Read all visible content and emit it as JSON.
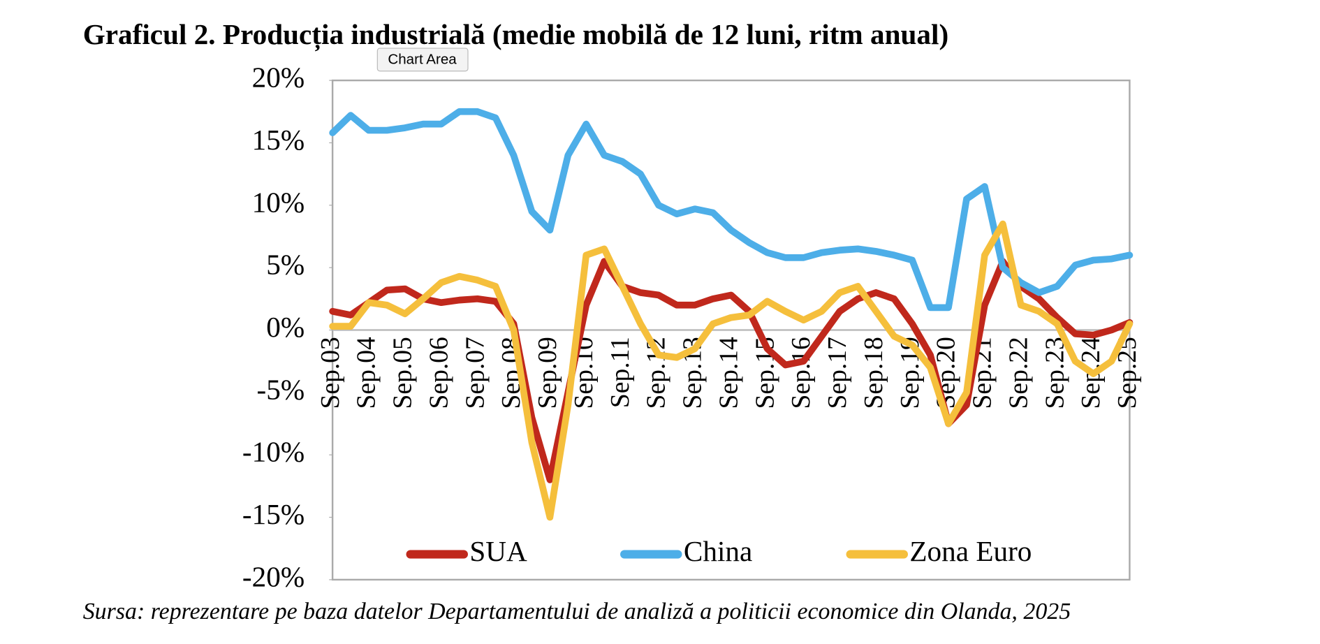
{
  "tooltip": "Chart Area",
  "chart_data": {
    "type": "line",
    "title": "Graficul 2. Producția industrială (medie mobilă de 12 luni, ritm anual)",
    "source": "Sursa: reprezentare pe baza datelor Departamentului de analiză a politicii economice din Olanda, 2025",
    "categories": [
      "Sep.03",
      null,
      "Sep.04",
      null,
      "Sep.05",
      null,
      "Sep.06",
      null,
      "Sep.07",
      null,
      "Sep.08",
      null,
      "Sep.09",
      null,
      "Sep.10",
      null,
      "Sep.11",
      null,
      "Sep.12",
      null,
      "Sep.13",
      null,
      "Sep.14",
      null,
      "Sep.15",
      null,
      "Sep.16",
      null,
      "Sep.17",
      null,
      "Sep.18",
      null,
      "Sep.19",
      null,
      "Sep.20",
      null,
      "Sep.21",
      null,
      "Sep.22",
      null,
      "Sep.23",
      null,
      "Sep.24",
      null,
      "Sep.25"
    ],
    "series": [
      {
        "name": "SUA",
        "color": "#c0281c",
        "values": [
          1.5,
          1.2,
          2.2,
          3.2,
          3.3,
          2.5,
          2.2,
          2.4,
          2.5,
          2.3,
          0.5,
          -7,
          -12,
          -5,
          2,
          5.5,
          3.5,
          3.0,
          2.8,
          2.0,
          2.0,
          2.5,
          2.8,
          1.5,
          -1.5,
          -2.8,
          -2.5,
          -0.5,
          1.5,
          2.5,
          3.0,
          2.5,
          0.5,
          -2,
          -7.5,
          -6,
          2,
          5.5,
          3.5,
          2.5,
          1.0,
          -0.3,
          -0.4,
          0,
          0.6
        ]
      },
      {
        "name": "China",
        "color": "#4daee8",
        "values": [
          15.8,
          17.2,
          16.0,
          16.0,
          16.2,
          16.5,
          16.5,
          17.5,
          17.5,
          17,
          14,
          9.5,
          8,
          14,
          16.5,
          14,
          13.5,
          12.5,
          10,
          9.3,
          9.7,
          9.4,
          8,
          7,
          6.2,
          5.8,
          5.8,
          6.2,
          6.4,
          6.5,
          6.3,
          6,
          5.6,
          1.8,
          1.8,
          10.5,
          11.5,
          5,
          3.8,
          3,
          3.5,
          5.2,
          5.6,
          5.7,
          6
        ]
      },
      {
        "name": "Zona Euro",
        "color": "#f5bf3c",
        "values": [
          0.3,
          0.3,
          2.2,
          2.0,
          1.3,
          2.5,
          3.8,
          4.3,
          4.0,
          3.5,
          0,
          -9,
          -15,
          -6,
          6,
          6.5,
          3.5,
          0.5,
          -2.0,
          -2.2,
          -1.5,
          0.5,
          1.0,
          1.2,
          2.3,
          1.5,
          0.8,
          1.5,
          3.0,
          3.5,
          1.5,
          -0.5,
          -1.2,
          -3,
          -7.5,
          -5,
          6,
          8.5,
          2,
          1.5,
          0.5,
          -2.5,
          -3.5,
          -2.5,
          0.5
        ]
      }
    ],
    "ylim": [
      -20,
      20
    ],
    "yticks": [
      {
        "value": 20,
        "label": "20%"
      },
      {
        "value": 15,
        "label": "15%"
      },
      {
        "value": 10,
        "label": "10%"
      },
      {
        "value": 5,
        "label": "5%"
      },
      {
        "value": 0,
        "label": "0%"
      },
      {
        "value": -5,
        "label": "-5%"
      },
      {
        "value": -10,
        "label": "-10%"
      },
      {
        "value": -15,
        "label": "-15%"
      },
      {
        "value": -20,
        "label": "-20%"
      }
    ],
    "legend": "bottom"
  }
}
